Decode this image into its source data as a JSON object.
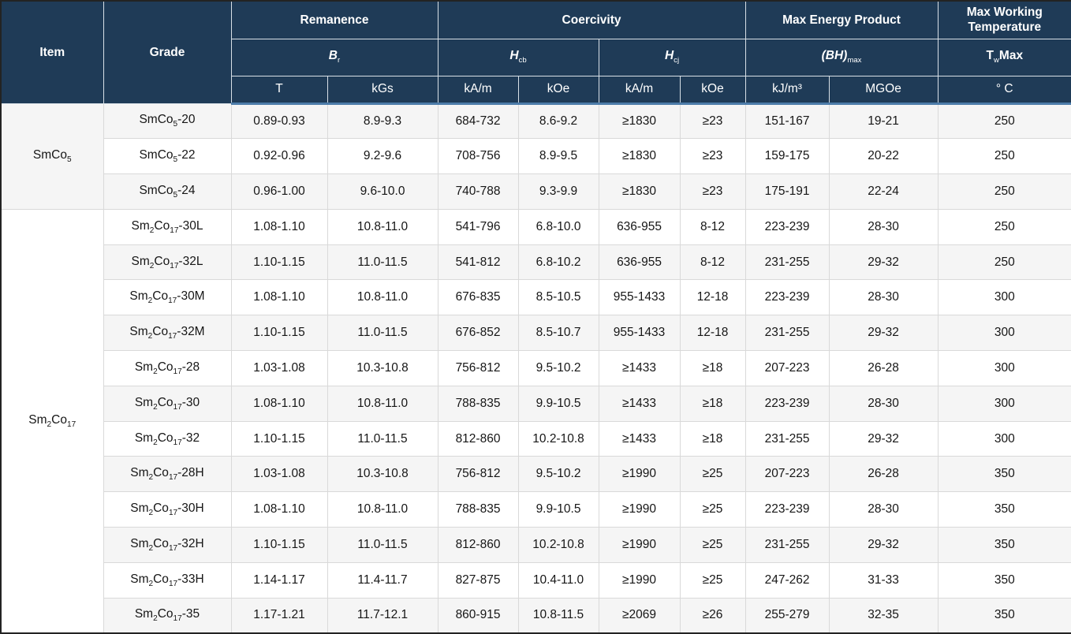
{
  "table": {
    "header": {
      "row1": {
        "item": "Item",
        "grade": "Grade",
        "remanence": "Remanence",
        "coercivity": "Coercivity",
        "max_energy_product": "Max Energy Product",
        "max_working_temperature": "Max Working Temperature"
      },
      "symbols": {
        "br": {
          "main": "B",
          "sub": "r"
        },
        "hcb": {
          "main": "H",
          "sub": "cb"
        },
        "hcj": {
          "main": "H",
          "sub": "cj"
        },
        "bhmax": {
          "main": "(BH)",
          "sub": "max"
        },
        "twmax": {
          "main": "T",
          "sub": "w",
          "suffix": "Max"
        }
      },
      "units": [
        "T",
        "kGs",
        "kA/m",
        "kOe",
        "kA/m",
        "kOe",
        "kJ/m³",
        "MGOe",
        "° C"
      ]
    },
    "groups": [
      {
        "item": "SmCo₅",
        "rows": [
          {
            "grade": "SmCo₅-20",
            "values": [
              "0.89-0.93",
              "8.9-9.3",
              "684-732",
              "8.6-9.2",
              "≥1830",
              "≥23",
              "151-167",
              "19-21",
              "250"
            ]
          },
          {
            "grade": "SmCo₅-22",
            "values": [
              "0.92-0.96",
              "9.2-9.6",
              "708-756",
              "8.9-9.5",
              "≥1830",
              "≥23",
              "159-175",
              "20-22",
              "250"
            ]
          },
          {
            "grade": "SmCo₅-24",
            "values": [
              "0.96-1.00",
              "9.6-10.0",
              "740-788",
              "9.3-9.9",
              "≥1830",
              "≥23",
              "175-191",
              "22-24",
              "250"
            ]
          }
        ]
      },
      {
        "item": "Sm₂Co₁₇",
        "rows": [
          {
            "grade": "Sm₂Co₁₇-30L",
            "values": [
              "1.08-1.10",
              "10.8-11.0",
              "541-796",
              "6.8-10.0",
              "636-955",
              "8-12",
              "223-239",
              "28-30",
              "250"
            ]
          },
          {
            "grade": "Sm₂Co₁₇-32L",
            "values": [
              "1.10-1.15",
              "11.0-11.5",
              "541-812",
              "6.8-10.2",
              "636-955",
              "8-12",
              "231-255",
              "29-32",
              "250"
            ]
          },
          {
            "grade": "Sm₂Co₁₇-30M",
            "values": [
              "1.08-1.10",
              "10.8-11.0",
              "676-835",
              "8.5-10.5",
              "955-1433",
              "12-18",
              "223-239",
              "28-30",
              "300"
            ]
          },
          {
            "grade": "Sm₂Co₁₇-32M",
            "values": [
              "1.10-1.15",
              "11.0-11.5",
              "676-852",
              "8.5-10.7",
              "955-1433",
              "12-18",
              "231-255",
              "29-32",
              "300"
            ]
          },
          {
            "grade": "Sm₂Co₁₇-28",
            "values": [
              "1.03-1.08",
              "10.3-10.8",
              "756-812",
              "9.5-10.2",
              "≥1433",
              "≥18",
              "207-223",
              "26-28",
              "300"
            ]
          },
          {
            "grade": "Sm₂Co₁₇-30",
            "values": [
              "1.08-1.10",
              "10.8-11.0",
              "788-835",
              "9.9-10.5",
              "≥1433",
              "≥18",
              "223-239",
              "28-30",
              "300"
            ]
          },
          {
            "grade": "Sm₂Co₁₇-32",
            "values": [
              "1.10-1.15",
              "11.0-11.5",
              "812-860",
              "10.2-10.8",
              "≥1433",
              "≥18",
              "231-255",
              "29-32",
              "300"
            ]
          },
          {
            "grade": "Sm₂Co₁₇-28H",
            "values": [
              "1.03-1.08",
              "10.3-10.8",
              "756-812",
              "9.5-10.2",
              "≥1990",
              "≥25",
              "207-223",
              "26-28",
              "350"
            ]
          },
          {
            "grade": "Sm₂Co₁₇-30H",
            "values": [
              "1.08-1.10",
              "10.8-11.0",
              "788-835",
              "9.9-10.5",
              "≥1990",
              "≥25",
              "223-239",
              "28-30",
              "350"
            ]
          },
          {
            "grade": "Sm₂Co₁₇-32H",
            "values": [
              "1.10-1.15",
              "11.0-11.5",
              "812-860",
              "10.2-10.8",
              "≥1990",
              "≥25",
              "231-255",
              "29-32",
              "350"
            ]
          },
          {
            "grade": "Sm₂Co₁₇-33H",
            "values": [
              "1.14-1.17",
              "11.4-11.7",
              "827-875",
              "10.4-11.0",
              "≥1990",
              "≥25",
              "247-262",
              "31-33",
              "350"
            ]
          },
          {
            "grade": "Sm₂Co₁₇-35",
            "values": [
              "1.17-1.21",
              "11.7-12.1",
              "860-915",
              "10.8-11.5",
              "≥2069",
              "≥26",
              "255-279",
              "32-35",
              "350"
            ]
          }
        ]
      }
    ],
    "colors": {
      "header_bg": "#1f3b57",
      "header_text": "#ffffff",
      "accent_line": "#4d7ca9",
      "row_alt_bg": "#f5f5f5",
      "row_bg": "#ffffff",
      "cell_border": "#d9d9d9",
      "outer_border": "#232323",
      "body_text": "#161616"
    }
  }
}
